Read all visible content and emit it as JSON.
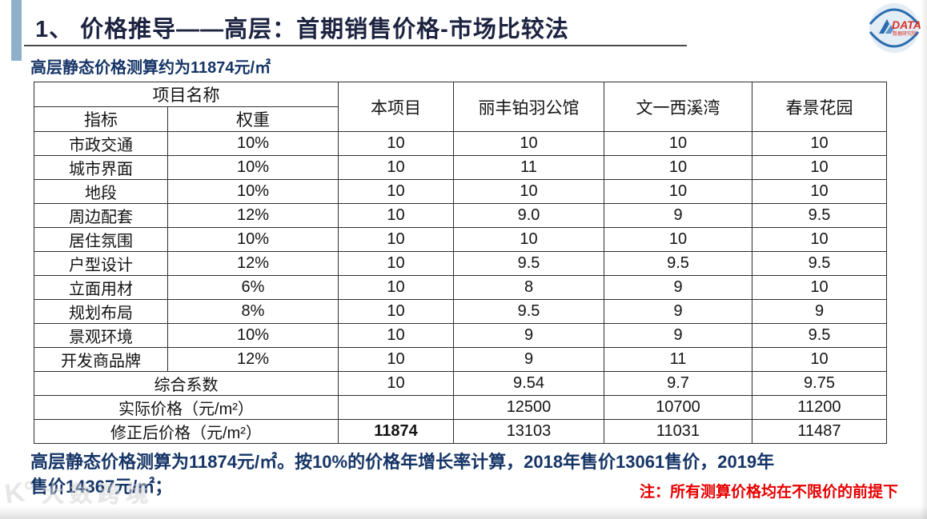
{
  "title": "1、 价格推导——高层：首期销售价格-市场比较法",
  "subtitle": "高层静态价格测算约为11874元/㎡",
  "logo": {
    "text": "DATA",
    "subtext": "数据研究院"
  },
  "table": {
    "header": {
      "project_name": "项目名称",
      "indicator": "指标",
      "weight": "权重",
      "columns": [
        "本项目",
        "丽丰铂羽公馆",
        "文一西溪湾",
        "春景花园"
      ]
    },
    "rows": [
      {
        "indicator": "市政交通",
        "weight": "10%",
        "values": [
          "10",
          "10",
          "10",
          "10"
        ]
      },
      {
        "indicator": "城市界面",
        "weight": "10%",
        "values": [
          "10",
          "11",
          "10",
          "10"
        ]
      },
      {
        "indicator": "地段",
        "weight": "10%",
        "values": [
          "10",
          "10",
          "10",
          "10"
        ]
      },
      {
        "indicator": "周边配套",
        "weight": "12%",
        "values": [
          "10",
          "9.0",
          "9",
          "9.5"
        ]
      },
      {
        "indicator": "居住氛围",
        "weight": "10%",
        "values": [
          "10",
          "10",
          "10",
          "10"
        ]
      },
      {
        "indicator": "户型设计",
        "weight": "12%",
        "values": [
          "10",
          "9.5",
          "9.5",
          "9.5"
        ]
      },
      {
        "indicator": "立面用材",
        "weight": "6%",
        "values": [
          "10",
          "8",
          "9",
          "10"
        ]
      },
      {
        "indicator": "规划布局",
        "weight": "8%",
        "values": [
          "10",
          "9.5",
          "9",
          "9"
        ]
      },
      {
        "indicator": "景观环境",
        "weight": "10%",
        "values": [
          "10",
          "9",
          "9",
          "9.5"
        ]
      },
      {
        "indicator": "开发商品牌",
        "weight": "12%",
        "values": [
          "10",
          "9",
          "11",
          "10"
        ]
      }
    ],
    "summary_rows": [
      {
        "label": "综合系数",
        "values": [
          "10",
          "9.54",
          "9.7",
          "9.75"
        ],
        "bold_first": false
      },
      {
        "label": "实际价格（元/m²）",
        "values": [
          "",
          "12500",
          "10700",
          "11200"
        ],
        "bold_first": false
      },
      {
        "label": "修正后价格（元/m²）",
        "values": [
          "11874",
          "13103",
          "11031",
          "11487"
        ],
        "bold_first": true
      }
    ]
  },
  "footer": {
    "line1": "高层静态价格测算为11874元/㎡。按10%的价格年增长率计算，2018年售价13061售价，2019年",
    "line2": "售价14367元/㎡；",
    "note": "注：所有测算价格均在不限价的前提下"
  },
  "watermark": {
    "glyph": "K°",
    "text": "大数跨境"
  },
  "colors": {
    "title_navy": "#1c2340",
    "text_navy": "#163567",
    "note_red": "#e60000",
    "accent_bar": "#8fb0c9",
    "table_border": "#2f2f2f",
    "logo_red": "#d93025",
    "logo_blue": "#2b6cb0"
  }
}
